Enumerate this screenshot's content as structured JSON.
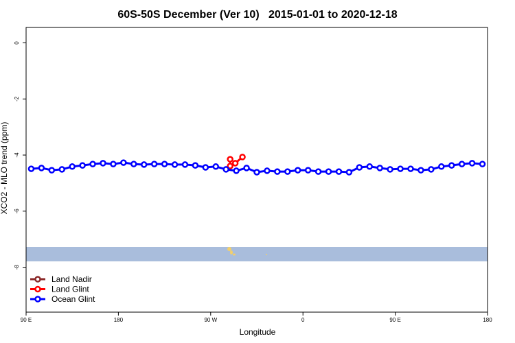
{
  "chart_data": {
    "type": "line",
    "title": "60S-50S December (Ver 10)   2015-01-01 to 2020-12-18",
    "x_label": "Longitude",
    "y_label": "XCO2 - MLO trend (ppm)",
    "xlim": [
      90,
      540
    ],
    "ylim": [
      -9.6,
      0.55
    ],
    "xticks": [
      {
        "value": 90,
        "label": "90 E"
      },
      {
        "value": 180,
        "label": "180"
      },
      {
        "value": 270,
        "label": "90 W"
      },
      {
        "value": 360,
        "label": "0"
      },
      {
        "value": 450,
        "label": "90 E"
      },
      {
        "value": 540,
        "label": "180"
      }
    ],
    "yticks": [
      0,
      -2,
      -4,
      -6,
      -8
    ],
    "legend": "bottom-left",
    "series": [
      {
        "name": "Land Nadir",
        "color": "#8b2a2a",
        "x": [],
        "values": []
      },
      {
        "name": "Land Glint",
        "color": "#ff0000",
        "x": [
          289,
          289,
          294,
          301
        ],
        "values": [
          -4.15,
          -4.39,
          -4.29,
          -4.07
        ]
      },
      {
        "name": "Ocean Glint",
        "color": "#0000ff",
        "x": [
          95,
          105,
          115,
          125,
          135,
          145,
          155,
          165,
          175,
          185,
          195,
          205,
          215,
          225,
          235,
          245,
          255,
          265,
          275,
          285,
          295,
          305,
          315,
          325,
          335,
          345,
          355,
          365,
          375,
          385,
          395,
          405,
          415,
          425,
          435,
          445,
          455,
          465,
          475,
          485,
          495,
          505,
          515,
          525,
          535
        ],
        "values": [
          -4.49,
          -4.46,
          -4.54,
          -4.51,
          -4.41,
          -4.37,
          -4.32,
          -4.29,
          -4.32,
          -4.27,
          -4.32,
          -4.34,
          -4.32,
          -4.32,
          -4.34,
          -4.34,
          -4.37,
          -4.44,
          -4.41,
          -4.51,
          -4.56,
          -4.46,
          -4.61,
          -4.56,
          -4.59,
          -4.59,
          -4.54,
          -4.54,
          -4.59,
          -4.59,
          -4.59,
          -4.61,
          -4.44,
          -4.41,
          -4.46,
          -4.51,
          -4.49,
          -4.49,
          -4.54,
          -4.51,
          -4.41,
          -4.37,
          -4.32,
          -4.29,
          -4.32
        ]
      }
    ]
  }
}
